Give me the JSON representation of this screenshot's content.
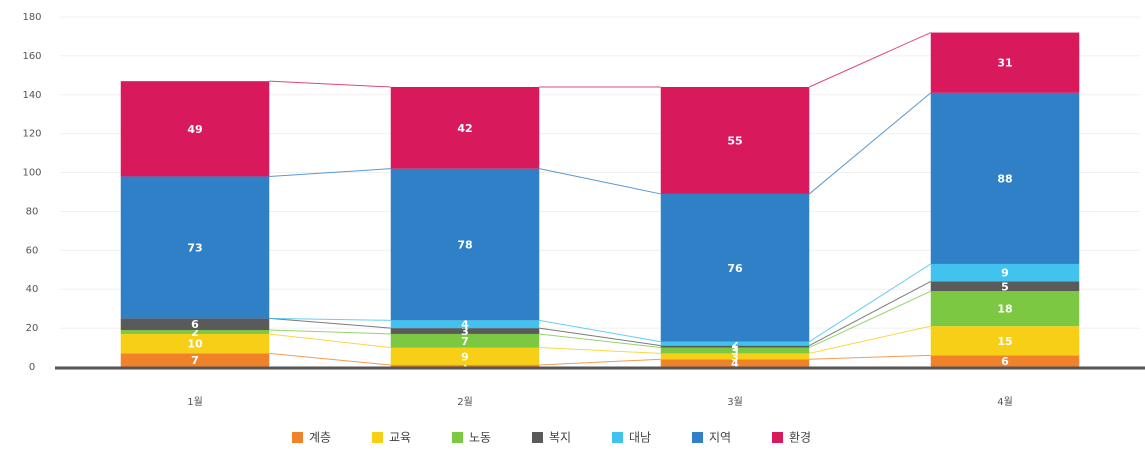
{
  "chart_data": {
    "type": "stacked_bar",
    "categories": [
      "1월",
      "2월",
      "3월",
      "4월"
    ],
    "series": [
      {
        "name": "계층",
        "color": "#f0832a",
        "values": [
          7,
          1,
          4,
          6
        ]
      },
      {
        "name": "교육",
        "color": "#f6cf16",
        "values": [
          10,
          9,
          3,
          15
        ]
      },
      {
        "name": "노동",
        "color": "#7cc843",
        "values": [
          2,
          7,
          3,
          18
        ]
      },
      {
        "name": "복지",
        "color": "#5a5a5a",
        "values": [
          6,
          3,
          1,
          5
        ]
      },
      {
        "name": "대남",
        "color": "#41c2ef",
        "values": [
          0,
          4,
          2,
          9
        ]
      },
      {
        "name": "지역",
        "color": "#2f80c6",
        "values": [
          73,
          78,
          76,
          88
        ]
      },
      {
        "name": "환경",
        "color": "#d81a5d",
        "values": [
          49,
          42,
          55,
          31
        ]
      }
    ],
    "ylim": [
      0,
      180
    ],
    "yticks": [
      0,
      20,
      40,
      60,
      80,
      100,
      120,
      140,
      160,
      180
    ],
    "grid": true
  }
}
